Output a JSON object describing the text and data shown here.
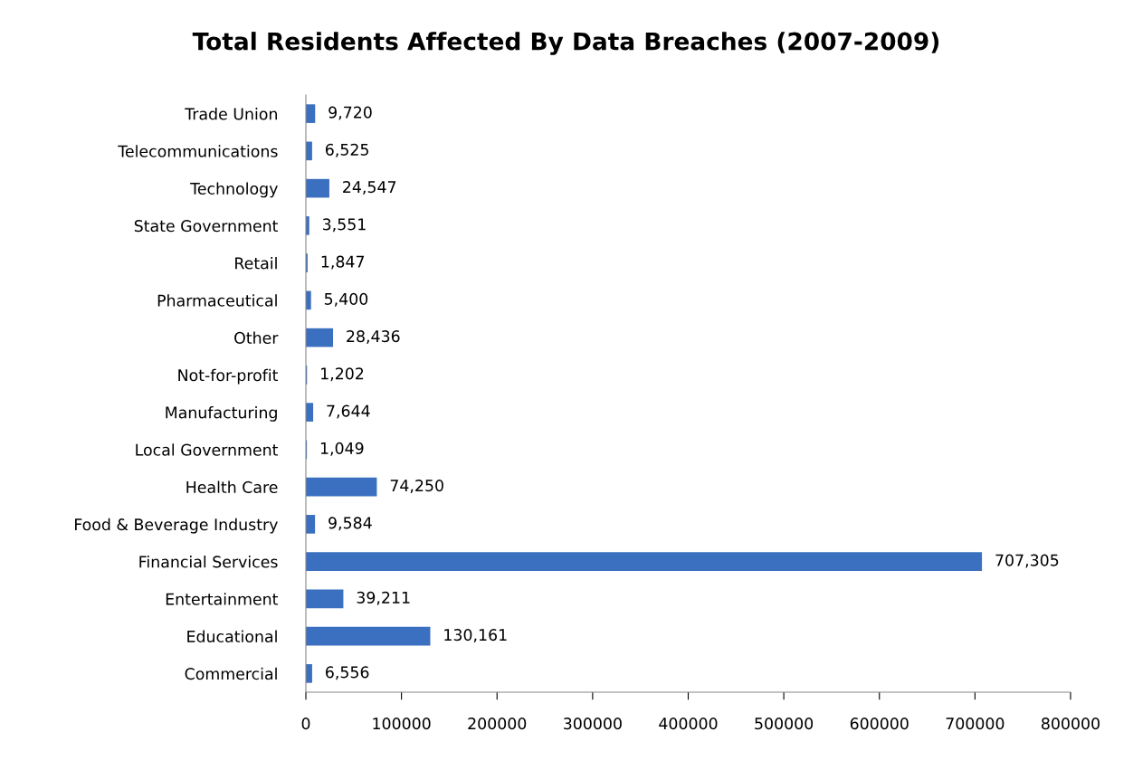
{
  "chart_data": {
    "type": "bar",
    "orientation": "horizontal",
    "title": "Total Residents Affected By Data Breaches (2007-2009)",
    "categories": [
      "Trade Union",
      "Telecommunications",
      "Technology",
      "State Government",
      "Retail",
      "Pharmaceutical",
      "Other",
      "Not-for-profit",
      "Manufacturing",
      "Local Government",
      "Health Care",
      "Food & Beverage Industry",
      "Financial Services",
      "Entertainment",
      "Educational",
      "Commercial"
    ],
    "values": [
      9720,
      6525,
      24547,
      3551,
      1847,
      5400,
      28436,
      1202,
      7644,
      1049,
      74250,
      9584,
      707305,
      39211,
      130161,
      6556
    ],
    "value_labels": [
      "9,720",
      "6,525",
      "24,547",
      "3,551",
      "1,847",
      "5,400",
      "28,436",
      "1,202",
      "7,644",
      "1,049",
      "74,250",
      "9,584",
      "707,305",
      "39,211",
      "130,161",
      "6,556"
    ],
    "color": "#3b6fbf",
    "xlim": [
      0,
      800000
    ],
    "xticks": [
      0,
      100000,
      200000,
      300000,
      400000,
      500000,
      600000,
      700000,
      800000
    ],
    "grid": false,
    "legend": false
  }
}
